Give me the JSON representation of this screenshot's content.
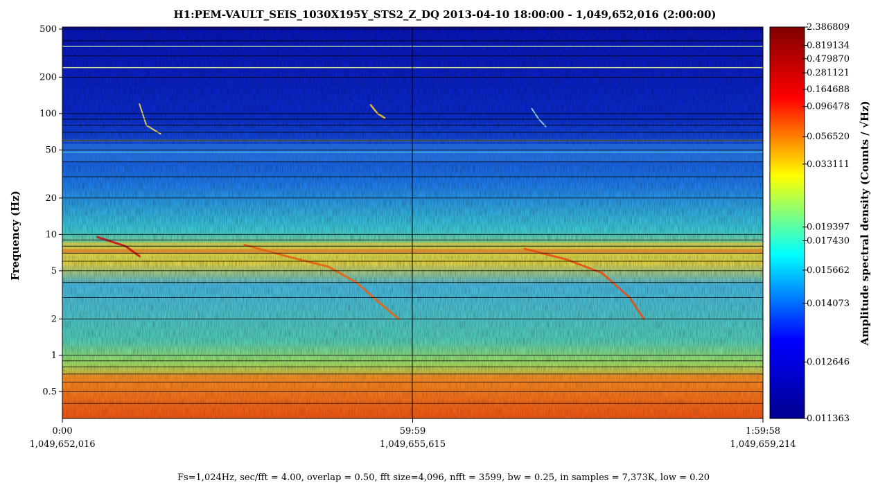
{
  "chart_data": {
    "type": "heatmap",
    "title": "H1:PEM-VAULT_SEIS_1030X195Y_STS2_Z_DQ 2013-04-10 18:00:00 - 1,049,652,016 (2:00:00)",
    "ylabel": "Frequency (Hz)",
    "colorbar_label": "Amplitude spectral density (Counts / √Hz)",
    "y_scale": "log",
    "ylim": [
      0.3,
      520
    ],
    "y_ticks": [
      {
        "value": 500,
        "label": "500"
      },
      {
        "value": 200,
        "label": "200"
      },
      {
        "value": 100,
        "label": "100"
      },
      {
        "value": 50,
        "label": "50"
      },
      {
        "value": 20,
        "label": "20"
      },
      {
        "value": 10,
        "label": "10"
      },
      {
        "value": 5,
        "label": "5"
      },
      {
        "value": 2,
        "label": "2"
      },
      {
        "value": 1,
        "label": "1"
      },
      {
        "value": 0.5,
        "label": "0.5"
      }
    ],
    "x_ticks": [
      {
        "frac": 0.0,
        "time": "0:00",
        "gps": "1,049,652,016"
      },
      {
        "frac": 0.5,
        "time": "59:59",
        "gps": "1,049,655,615"
      },
      {
        "frac": 1.0,
        "time": "1:59:58",
        "gps": "1,049,659,214"
      }
    ],
    "colorbar_ticks": [
      "2.386809",
      "0.819134",
      "0.479870",
      "0.281121",
      "0.164688",
      "0.096478",
      "0.056520",
      "0.033111",
      "0.019397",
      "0.017430",
      "0.015662",
      "0.014073",
      "0.012646",
      "0.011363"
    ],
    "colormap": [
      "#00008f",
      "#0000ff",
      "#00ffff",
      "#ffff00",
      "#ff0000",
      "#800000"
    ],
    "footer": "Fs=1,024Hz, sec/fft = 4.00, overlap = 0.50, fft size=4,096, nfft = 3599, bw = 0.25, in samples = 7,373K, low = 0.20"
  }
}
